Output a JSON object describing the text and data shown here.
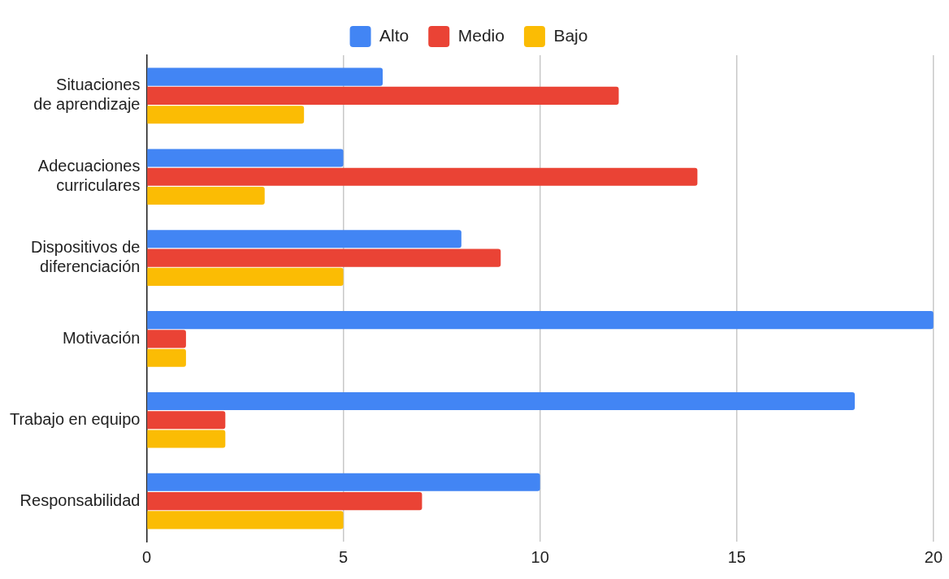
{
  "chart_data": {
    "type": "bar",
    "orientation": "horizontal",
    "categories": [
      "Situaciones de aprendizaje",
      "Adecuaciones curriculares",
      "Dispositivos de diferenciación",
      "Motivación",
      "Trabajo en equipo",
      "Responsabilidad"
    ],
    "series": [
      {
        "name": "Alto",
        "color": "#4285f4",
        "values": [
          6,
          5,
          8,
          20,
          18,
          10
        ]
      },
      {
        "name": "Medio",
        "color": "#ea4335",
        "values": [
          12,
          14,
          9,
          1,
          2,
          7
        ]
      },
      {
        "name": "Bajo",
        "color": "#fbbc04",
        "values": [
          4,
          3,
          5,
          1,
          2,
          5
        ]
      }
    ],
    "xlim": [
      0,
      20
    ],
    "xticks": [
      0,
      5,
      10,
      15,
      20
    ],
    "grid": "x",
    "legend": "top"
  }
}
